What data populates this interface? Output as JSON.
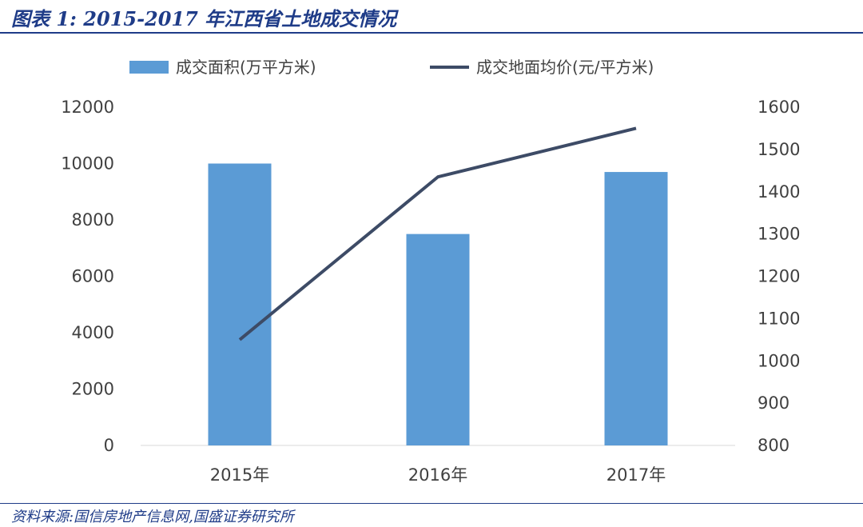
{
  "figure": {
    "title": "图表 1: 2015-2017 年江西省土地成交情况",
    "source": "资料来源:国信房地产信息网,国盛证券研究所"
  },
  "colors": {
    "bar": "#5b9bd5",
    "line": "#3d4b66",
    "title": "#1f3c88",
    "axis_text": "#404040",
    "axis_line": "#d9d9d9"
  },
  "chart_data": {
    "type": "bar",
    "categories": [
      "2015年",
      "2016年",
      "2017年"
    ],
    "series": [
      {
        "name": "成交面积(万平方米)",
        "type": "bar",
        "axis": "left",
        "values": [
          10000,
          7500,
          9700
        ]
      },
      {
        "name": "成交地面均价(元/平方米)",
        "type": "line",
        "axis": "right",
        "values": [
          1050,
          1435,
          1550
        ]
      }
    ],
    "ylim_left": [
      0,
      12000
    ],
    "yticks_left": [
      "0",
      "2000",
      "4000",
      "6000",
      "8000",
      "10000",
      "12000"
    ],
    "ylim_right": [
      800,
      1600
    ],
    "yticks_right": [
      "800",
      "900",
      "1000",
      "1100",
      "1200",
      "1300",
      "1400",
      "1500",
      "1600"
    ],
    "legend": "top",
    "grid": false
  }
}
